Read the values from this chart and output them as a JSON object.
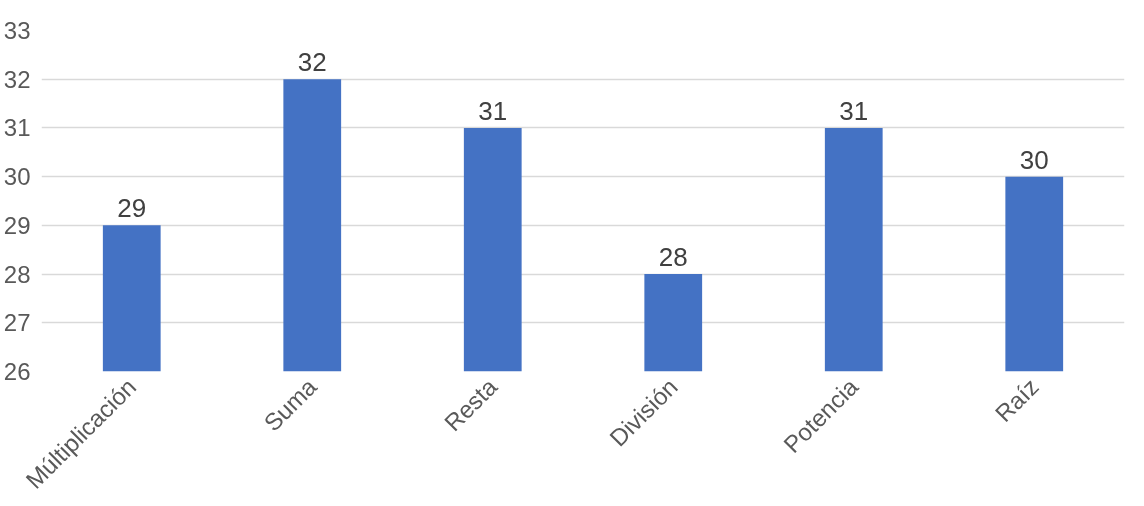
{
  "chart_data": {
    "type": "bar",
    "categories": [
      "Múltiplicación",
      "Suma",
      "Resta",
      "División",
      "Potencia",
      "Raíz"
    ],
    "values": [
      29,
      32,
      31,
      28,
      31,
      30
    ],
    "color": "#4472c4",
    "ylim": [
      26,
      33
    ],
    "yticks": [
      26,
      27,
      28,
      29,
      30,
      31,
      32,
      33
    ],
    "grid": "y",
    "data_labels": true
  }
}
